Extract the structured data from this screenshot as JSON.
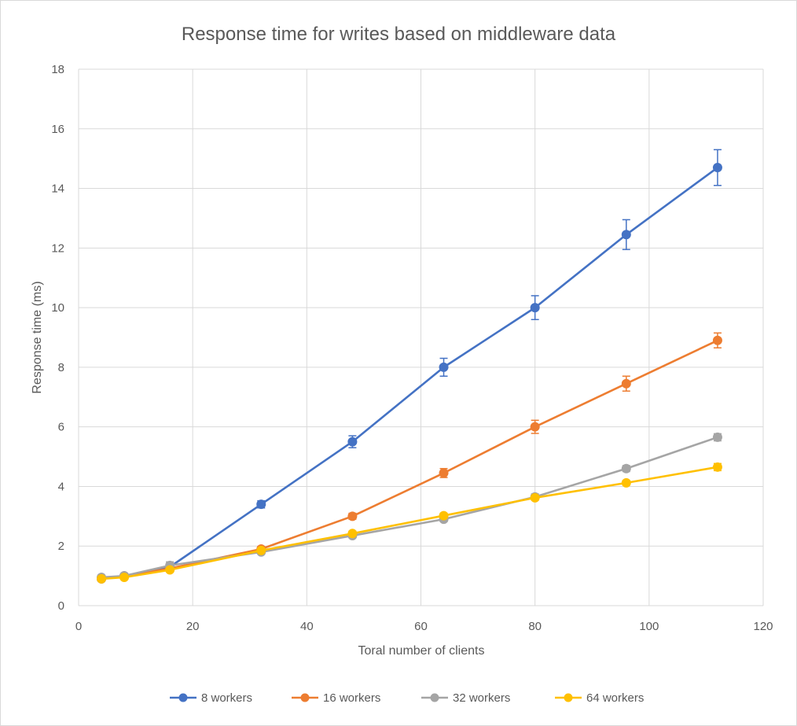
{
  "chart_data": {
    "type": "line",
    "title": "Response time for writes based on middleware data",
    "xlabel": "Toral number of clients",
    "ylabel": "Response time (ms)",
    "xlim": [
      0,
      120
    ],
    "ylim": [
      0,
      18
    ],
    "xticks": [
      0,
      20,
      40,
      60,
      80,
      100,
      120
    ],
    "yticks": [
      0,
      2,
      4,
      6,
      8,
      10,
      12,
      14,
      16,
      18
    ],
    "grid": true,
    "legend_position": "bottom",
    "x": [
      4,
      8,
      16,
      32,
      48,
      64,
      80,
      96,
      112
    ],
    "series": [
      {
        "name": "8 workers",
        "color": "#4472C4",
        "values": [
          0.9,
          1.0,
          1.3,
          3.4,
          5.5,
          8.0,
          10.0,
          12.45,
          14.7
        ],
        "errors": [
          0.08,
          0.08,
          0.1,
          0.12,
          0.2,
          0.3,
          0.4,
          0.5,
          0.6
        ]
      },
      {
        "name": "16 workers",
        "color": "#ED7D31",
        "values": [
          0.9,
          1.0,
          1.25,
          1.9,
          3.0,
          4.45,
          6.0,
          7.45,
          8.9
        ],
        "errors": [
          0.06,
          0.06,
          0.08,
          0.08,
          0.1,
          0.15,
          0.22,
          0.25,
          0.25
        ]
      },
      {
        "name": "32 workers",
        "color": "#A5A5A5",
        "values": [
          0.95,
          1.0,
          1.35,
          1.8,
          2.35,
          2.9,
          3.65,
          4.6,
          5.65
        ],
        "errors": [
          0.06,
          0.06,
          0.12,
          0.06,
          0.06,
          0.08,
          0.1,
          0.1,
          0.12
        ]
      },
      {
        "name": "64 workers",
        "color": "#FFC000",
        "values": [
          0.9,
          0.95,
          1.2,
          1.85,
          2.42,
          3.02,
          3.62,
          4.12,
          4.65
        ],
        "errors": [
          0.06,
          0.06,
          0.06,
          0.06,
          0.08,
          0.08,
          0.08,
          0.08,
          0.12
        ]
      }
    ]
  }
}
